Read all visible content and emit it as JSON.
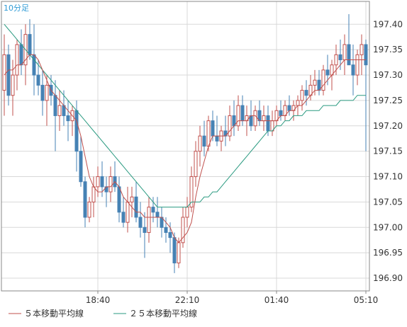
{
  "chart_data": {
    "type": "candlestick",
    "title": "10分足",
    "ylim": [
      196.875,
      197.445
    ],
    "y_ticks": [
      "197.40",
      "197.35",
      "197.30",
      "197.25",
      "197.20",
      "197.15",
      "197.10",
      "197.05",
      "197.00",
      "196.95",
      "196.90"
    ],
    "x_ticks": [
      {
        "index": 22,
        "label": "18:40"
      },
      {
        "index": 43,
        "label": "22:10"
      },
      {
        "index": 64,
        "label": "01:40"
      },
      {
        "index": 85,
        "label": "05:10"
      }
    ],
    "grid": true,
    "legend": [
      {
        "label": "５本移動平均線",
        "color": "#c0504d"
      },
      {
        "label": "２５本移動平均線",
        "color": "#2a9a80"
      }
    ],
    "colors": {
      "up": "#c0504d",
      "down": "#4682b4",
      "ma5": "#c0504d",
      "ma25": "#2a9a80",
      "grid": "#d8d8d8",
      "axis": "#888888"
    },
    "candles": [
      [
        197.27,
        197.38,
        197.22,
        197.34
      ],
      [
        197.34,
        197.36,
        197.24,
        197.26
      ],
      [
        197.26,
        197.33,
        197.22,
        197.3
      ],
      [
        197.3,
        197.37,
        197.27,
        197.36
      ],
      [
        197.36,
        197.39,
        197.3,
        197.32
      ],
      [
        197.32,
        197.4,
        197.28,
        197.38
      ],
      [
        197.38,
        197.41,
        197.33,
        197.34
      ],
      [
        197.34,
        197.4,
        197.26,
        197.3
      ],
      [
        197.3,
        197.33,
        197.26,
        197.28
      ],
      [
        197.28,
        197.31,
        197.22,
        197.25
      ],
      [
        197.25,
        197.3,
        197.2,
        197.28
      ],
      [
        197.28,
        197.3,
        197.24,
        197.26
      ],
      [
        197.26,
        197.29,
        197.15,
        197.22
      ],
      [
        197.22,
        197.27,
        197.19,
        197.24
      ],
      [
        197.24,
        197.27,
        197.2,
        197.22
      ],
      [
        197.22,
        197.25,
        197.17,
        197.21
      ],
      [
        197.21,
        197.24,
        197.18,
        197.23
      ],
      [
        197.23,
        197.25,
        197.11,
        197.15
      ],
      [
        197.15,
        197.18,
        197.08,
        197.09
      ],
      [
        197.09,
        197.1,
        197.0,
        197.02
      ],
      [
        197.02,
        197.06,
        197.01,
        197.05
      ],
      [
        197.05,
        197.1,
        197.02,
        197.08
      ],
      [
        197.08,
        197.12,
        197.06,
        197.1
      ],
      [
        197.1,
        197.13,
        197.06,
        197.08
      ],
      [
        197.08,
        197.1,
        197.04,
        197.07
      ],
      [
        197.07,
        197.12,
        197.05,
        197.1
      ],
      [
        197.1,
        197.13,
        197.07,
        197.08
      ],
      [
        197.08,
        197.1,
        197.01,
        197.03
      ],
      [
        197.03,
        197.06,
        197.0,
        197.01
      ],
      [
        197.01,
        197.08,
        196.99,
        197.05
      ],
      [
        197.05,
        197.08,
        197.02,
        197.06
      ],
      [
        197.06,
        197.09,
        197.01,
        197.02
      ],
      [
        197.02,
        197.05,
        196.98,
        197.0
      ],
      [
        197.0,
        197.03,
        196.94,
        196.99
      ],
      [
        196.99,
        197.06,
        196.97,
        197.04
      ],
      [
        197.04,
        197.06,
        197.01,
        197.03
      ],
      [
        197.03,
        197.06,
        197.0,
        197.02
      ],
      [
        197.02,
        197.04,
        196.98,
        197.0
      ],
      [
        197.0,
        197.02,
        196.97,
        196.99
      ],
      [
        196.99,
        197.01,
        196.95,
        196.98
      ],
      [
        196.98,
        196.99,
        196.91,
        196.93
      ],
      [
        196.93,
        196.98,
        196.92,
        196.97
      ],
      [
        196.97,
        197.04,
        196.96,
        197.02
      ],
      [
        197.02,
        197.06,
        197.0,
        197.04
      ],
      [
        197.04,
        197.12,
        197.03,
        197.1
      ],
      [
        197.1,
        197.17,
        197.08,
        197.15
      ],
      [
        197.15,
        197.2,
        197.12,
        197.18
      ],
      [
        197.18,
        197.21,
        197.14,
        197.16
      ],
      [
        197.16,
        197.22,
        197.15,
        197.21
      ],
      [
        197.21,
        197.23,
        197.17,
        197.18
      ],
      [
        197.18,
        197.22,
        197.16,
        197.17
      ],
      [
        197.17,
        197.2,
        197.15,
        197.19
      ],
      [
        197.19,
        197.22,
        197.16,
        197.18
      ],
      [
        197.18,
        197.24,
        197.17,
        197.22
      ],
      [
        197.22,
        197.25,
        197.18,
        197.2
      ],
      [
        197.2,
        197.26,
        197.19,
        197.24
      ],
      [
        197.24,
        197.26,
        197.2,
        197.21
      ],
      [
        197.21,
        197.24,
        197.18,
        197.22
      ],
      [
        197.22,
        197.25,
        197.19,
        197.2
      ],
      [
        197.2,
        197.24,
        197.19,
        197.23
      ],
      [
        197.23,
        197.25,
        197.2,
        197.21
      ],
      [
        197.21,
        197.24,
        197.19,
        197.22
      ],
      [
        197.22,
        197.24,
        197.18,
        197.19
      ],
      [
        197.19,
        197.23,
        197.18,
        197.21
      ],
      [
        197.21,
        197.24,
        197.2,
        197.23
      ],
      [
        197.23,
        197.25,
        197.21,
        197.22
      ],
      [
        197.22,
        197.25,
        197.21,
        197.24
      ],
      [
        197.24,
        197.26,
        197.22,
        197.23
      ],
      [
        197.23,
        197.25,
        197.21,
        197.24
      ],
      [
        197.24,
        197.26,
        197.22,
        197.25
      ],
      [
        197.25,
        197.28,
        197.23,
        197.27
      ],
      [
        197.27,
        197.29,
        197.24,
        197.26
      ],
      [
        197.26,
        197.3,
        197.25,
        197.28
      ],
      [
        197.28,
        197.31,
        197.26,
        197.29
      ],
      [
        197.29,
        197.31,
        197.26,
        197.27
      ],
      [
        197.27,
        197.32,
        197.26,
        197.31
      ],
      [
        197.31,
        197.34,
        197.28,
        197.3
      ],
      [
        197.3,
        197.33,
        197.27,
        197.32
      ],
      [
        197.32,
        197.36,
        197.3,
        197.34
      ],
      [
        197.34,
        197.37,
        197.31,
        197.33
      ],
      [
        197.33,
        197.38,
        197.3,
        197.36
      ],
      [
        197.36,
        197.42,
        197.32,
        197.32
      ],
      [
        197.32,
        197.36,
        197.26,
        197.3
      ],
      [
        197.3,
        197.35,
        197.28,
        197.34
      ],
      [
        197.34,
        197.38,
        197.3,
        197.36
      ],
      [
        197.36,
        197.37,
        197.15,
        197.32
      ]
    ],
    "ma5": [
      197.3,
      197.31,
      197.31,
      197.32,
      197.32,
      197.33,
      197.34,
      197.34,
      197.33,
      197.31,
      197.29,
      197.27,
      197.26,
      197.25,
      197.24,
      197.23,
      197.22,
      197.21,
      197.18,
      197.14,
      197.1,
      197.08,
      197.07,
      197.07,
      197.08,
      197.08,
      197.09,
      197.08,
      197.06,
      197.05,
      197.04,
      197.03,
      197.03,
      197.02,
      197.02,
      197.02,
      197.02,
      197.02,
      197.01,
      197.0,
      196.98,
      196.97,
      196.98,
      196.99,
      197.01,
      197.06,
      197.1,
      197.13,
      197.16,
      197.18,
      197.18,
      197.18,
      197.18,
      197.19,
      197.2,
      197.21,
      197.21,
      197.21,
      197.22,
      197.22,
      197.21,
      197.21,
      197.21,
      197.21,
      197.21,
      197.22,
      197.22,
      197.23,
      197.23,
      197.24,
      197.24,
      197.25,
      197.26,
      197.27,
      197.27,
      197.28,
      197.29,
      197.3,
      197.31,
      197.32,
      197.33,
      197.33,
      197.33,
      197.33,
      197.33,
      197.33
    ],
    "ma25": [
      197.4,
      197.39,
      197.38,
      197.37,
      197.36,
      197.35,
      197.34,
      197.33,
      197.32,
      197.31,
      197.3,
      197.29,
      197.28,
      197.27,
      197.26,
      197.25,
      197.24,
      197.23,
      197.22,
      197.21,
      197.2,
      197.19,
      197.18,
      197.17,
      197.16,
      197.15,
      197.14,
      197.13,
      197.12,
      197.11,
      197.1,
      197.09,
      197.08,
      197.07,
      197.06,
      197.05,
      197.04,
      197.04,
      197.04,
      197.04,
      197.04,
      197.04,
      197.04,
      197.04,
      197.05,
      197.05,
      197.05,
      197.06,
      197.06,
      197.07,
      197.07,
      197.08,
      197.09,
      197.1,
      197.11,
      197.12,
      197.13,
      197.14,
      197.15,
      197.16,
      197.17,
      197.18,
      197.19,
      197.19,
      197.2,
      197.2,
      197.21,
      197.21,
      197.22,
      197.22,
      197.22,
      197.23,
      197.23,
      197.23,
      197.23,
      197.24,
      197.24,
      197.24,
      197.24,
      197.25,
      197.25,
      197.25,
      197.25,
      197.26,
      197.26,
      197.26
    ]
  }
}
